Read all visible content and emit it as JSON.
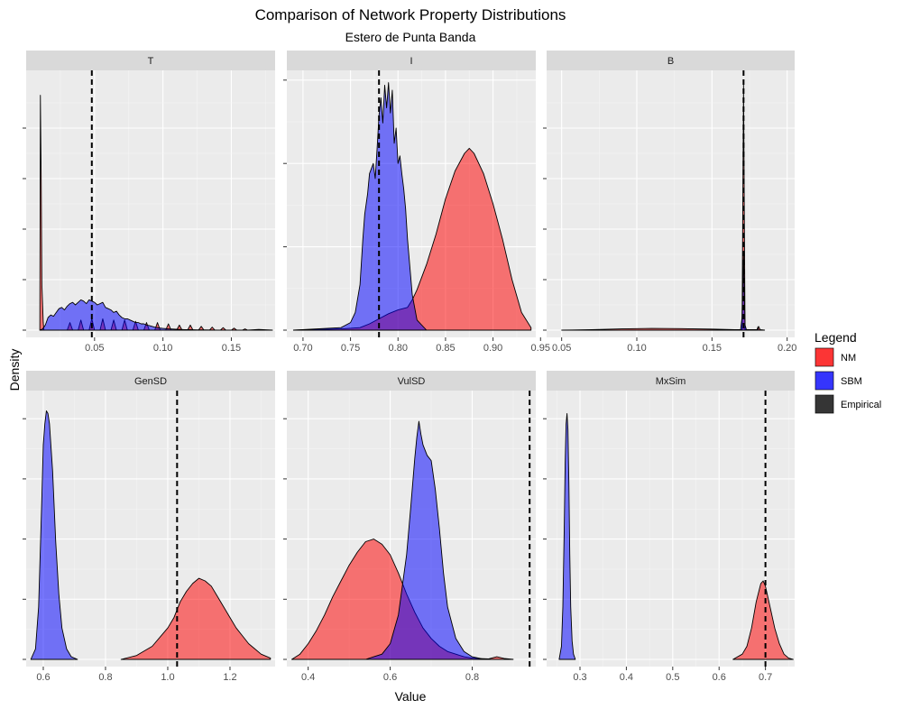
{
  "chart_data": {
    "type": "area",
    "title": "Comparison of Network Property Distributions",
    "subtitle": "Estero de Punta Banda",
    "xlabel": "Value",
    "ylabel": "Density",
    "grid": true,
    "legend": {
      "title": "Legend",
      "placement": "right",
      "entries": [
        {
          "label": "NM",
          "color": "#ff0000"
        },
        {
          "label": "SBM",
          "color": "#0000ff"
        },
        {
          "label": "Empirical",
          "color": "#000000"
        }
      ]
    },
    "panels": [
      {
        "name": "T",
        "xlim": [
          0.0,
          0.182
        ],
        "ylim": [
          0,
          1
        ],
        "xticks": [
          0.05,
          0.1,
          0.15
        ],
        "xtick_labels": [
          "0.05",
          "0.10",
          "0.15"
        ],
        "yticks": [
          0.0,
          0.2,
          0.4,
          0.6,
          0.8
        ],
        "empirical": 0.048,
        "series": [
          {
            "name": "NM",
            "x": [
              0.01,
              0.0104,
              0.011,
              0.0115,
              0.0125,
              0.013,
              0.03,
              0.032,
              0.034,
              0.038,
              0.04,
              0.042,
              0.046,
              0.048,
              0.05,
              0.054,
              0.056,
              0.058,
              0.062,
              0.064,
              0.066,
              0.07,
              0.072,
              0.074,
              0.078,
              0.08,
              0.082,
              0.086,
              0.088,
              0.09,
              0.094,
              0.096,
              0.098,
              0.102,
              0.104,
              0.106,
              0.11,
              0.112,
              0.114,
              0.118,
              0.12,
              0.122,
              0.126,
              0.128,
              0.13,
              0.134,
              0.136,
              0.138,
              0.142,
              0.144,
              0.146,
              0.15,
              0.152,
              0.154,
              0.158,
              0.16,
              0.162,
              0.17,
              0.18
            ],
            "y": [
              0.0,
              0.93,
              0.6,
              0.18,
              0.03,
              0.0,
              0.0,
              0.03,
              0.0,
              0.0,
              0.04,
              0.0,
              0.0,
              0.045,
              0.0,
              0.0,
              0.045,
              0.0,
              0.0,
              0.04,
              0.0,
              0.0,
              0.04,
              0.0,
              0.0,
              0.035,
              0.0,
              0.0,
              0.03,
              0.0,
              0.0,
              0.03,
              0.0,
              0.0,
              0.025,
              0.0,
              0.0,
              0.02,
              0.0,
              0.0,
              0.02,
              0.0,
              0.0,
              0.015,
              0.0,
              0.0,
              0.012,
              0.0,
              0.0,
              0.01,
              0.0,
              0.0,
              0.008,
              0.0,
              0.0,
              0.005,
              0.0,
              0.003,
              0.0
            ]
          },
          {
            "name": "SBM",
            "x": [
              0.01,
              0.012,
              0.014,
              0.016,
              0.018,
              0.02,
              0.022,
              0.024,
              0.026,
              0.028,
              0.03,
              0.032,
              0.034,
              0.036,
              0.038,
              0.04,
              0.042,
              0.044,
              0.046,
              0.048,
              0.05,
              0.052,
              0.054,
              0.056,
              0.058,
              0.06,
              0.062,
              0.064,
              0.066,
              0.068,
              0.07,
              0.072,
              0.074,
              0.076,
              0.078,
              0.08,
              0.082,
              0.084,
              0.086,
              0.088,
              0.09,
              0.092,
              0.094,
              0.096,
              0.098,
              0.1,
              0.104,
              0.108,
              0.112,
              0.116,
              0.12,
              0.125,
              0.13,
              0.14,
              0.15,
              0.16,
              0.18
            ],
            "y": [
              0.0,
              0.005,
              0.02,
              0.05,
              0.06,
              0.055,
              0.07,
              0.085,
              0.09,
              0.08,
              0.095,
              0.105,
              0.11,
              0.1,
              0.11,
              0.12,
              0.115,
              0.105,
              0.12,
              0.115,
              0.11,
              0.1,
              0.105,
              0.11,
              0.09,
              0.085,
              0.08,
              0.07,
              0.075,
              0.06,
              0.05,
              0.045,
              0.045,
              0.04,
              0.035,
              0.03,
              0.03,
              0.025,
              0.025,
              0.02,
              0.018,
              0.015,
              0.012,
              0.01,
              0.008,
              0.007,
              0.005,
              0.004,
              0.003,
              0.002,
              0.002,
              0.001,
              0.001,
              0.0,
              0.0,
              0.0,
              0.0
            ]
          }
        ]
      },
      {
        "name": "I",
        "xlim": [
          0.683,
          0.945
        ],
        "ylim": [
          0,
          1
        ],
        "xticks": [
          0.7,
          0.75,
          0.8,
          0.85,
          0.9,
          0.95
        ],
        "xtick_labels": [
          "0.70",
          "0.75",
          "0.80",
          "0.85",
          "0.90",
          "0.95"
        ],
        "yticks": [
          0.0,
          0.33,
          0.66,
          0.99
        ],
        "empirical": 0.78,
        "series": [
          {
            "name": "NM",
            "x": [
              0.69,
              0.74,
              0.76,
              0.77,
              0.78,
              0.79,
              0.8,
              0.81,
              0.815,
              0.82,
              0.83,
              0.84,
              0.85,
              0.86,
              0.87,
              0.875,
              0.88,
              0.89,
              0.9,
              0.91,
              0.92,
              0.93,
              0.94
            ],
            "y": [
              0.0,
              0.005,
              0.01,
              0.025,
              0.045,
              0.065,
              0.08,
              0.09,
              0.12,
              0.16,
              0.26,
              0.38,
              0.52,
              0.63,
              0.7,
              0.72,
              0.7,
              0.62,
              0.5,
              0.36,
              0.2,
              0.07,
              0.01
            ]
          },
          {
            "name": "SBM",
            "x": [
              0.69,
              0.74,
              0.75,
              0.755,
              0.76,
              0.763,
              0.765,
              0.768,
              0.77,
              0.772,
              0.774,
              0.776,
              0.778,
              0.78,
              0.782,
              0.784,
              0.786,
              0.788,
              0.79,
              0.792,
              0.794,
              0.796,
              0.798,
              0.8,
              0.802,
              0.804,
              0.806,
              0.808,
              0.81,
              0.815,
              0.82,
              0.83
            ],
            "y": [
              0.0,
              0.01,
              0.03,
              0.07,
              0.18,
              0.36,
              0.46,
              0.54,
              0.62,
              0.64,
              0.66,
              0.6,
              0.72,
              0.85,
              0.92,
              0.82,
              0.97,
              0.88,
              0.98,
              0.86,
              0.95,
              0.74,
              0.8,
              0.66,
              0.69,
              0.62,
              0.56,
              0.48,
              0.36,
              0.14,
              0.04,
              0.0
            ]
          }
        ]
      },
      {
        "name": "B",
        "xlim": [
          0.04,
          0.205
        ],
        "ylim": [
          0,
          1
        ],
        "xticks": [
          0.05,
          0.1,
          0.15,
          0.2
        ],
        "xtick_labels": [
          "0.05",
          "0.10",
          "0.15",
          "0.20"
        ],
        "yticks": [
          0.0,
          0.2,
          0.4,
          0.6,
          0.8
        ],
        "empirical": 0.171,
        "series": [
          {
            "name": "NM",
            "x": [
              0.05,
              0.07,
              0.09,
              0.11,
              0.13,
              0.15,
              0.165,
              0.17,
              0.171,
              0.172,
              0.175,
              0.18,
              0.181,
              0.182,
              0.185
            ],
            "y": [
              0.0,
              0.002,
              0.005,
              0.007,
              0.006,
              0.004,
              0.002,
              0.002,
              0.98,
              0.002,
              0.002,
              0.002,
              0.015,
              0.002,
              0.0
            ]
          },
          {
            "name": "SBM",
            "x": [
              0.169,
              0.17,
              0.1705,
              0.171,
              0.1715,
              0.172,
              0.173,
              0.18,
              0.1805,
              0.181,
              0.1815
            ],
            "y": [
              0.0,
              0.05,
              0.18,
              0.3,
              0.14,
              0.02,
              0.0,
              0.0,
              0.012,
              0.0,
              0.0
            ]
          }
        ]
      },
      {
        "name": "GenSD",
        "xlim": [
          0.545,
          1.345
        ],
        "ylim": [
          0,
          1
        ],
        "xticks": [
          0.6,
          0.8,
          1.0,
          1.2
        ],
        "xtick_labels": [
          "0.6",
          "0.8",
          "1.0",
          "1.2"
        ],
        "yticks": [
          0.0,
          0.23,
          0.46,
          0.69,
          0.92
        ],
        "empirical": 1.03,
        "series": [
          {
            "name": "NM",
            "x": [
              0.85,
              0.9,
              0.95,
              1.0,
              1.02,
              1.04,
              1.06,
              1.08,
              1.1,
              1.12,
              1.14,
              1.16,
              1.18,
              1.2,
              1.22,
              1.24,
              1.26,
              1.28,
              1.3,
              1.33
            ],
            "y": [
              0.0,
              0.015,
              0.05,
              0.12,
              0.16,
              0.22,
              0.26,
              0.29,
              0.31,
              0.3,
              0.28,
              0.24,
              0.2,
              0.16,
              0.12,
              0.09,
              0.06,
              0.04,
              0.02,
              0.005
            ]
          },
          {
            "name": "SBM",
            "x": [
              0.56,
              0.575,
              0.585,
              0.595,
              0.6,
              0.605,
              0.61,
              0.615,
              0.62,
              0.63,
              0.64,
              0.65,
              0.66,
              0.675,
              0.69,
              0.71
            ],
            "y": [
              0.0,
              0.04,
              0.2,
              0.6,
              0.82,
              0.9,
              0.95,
              0.94,
              0.9,
              0.72,
              0.45,
              0.25,
              0.12,
              0.04,
              0.01,
              0.0
            ]
          }
        ]
      },
      {
        "name": "VulSD",
        "xlim": [
          0.348,
          0.955
        ],
        "ylim": [
          0,
          1
        ],
        "xticks": [
          0.4,
          0.6,
          0.8
        ],
        "xtick_labels": [
          "0.4",
          "0.6",
          "0.8"
        ],
        "yticks": [
          0.0,
          0.23,
          0.46,
          0.69,
          0.92
        ],
        "empirical": 0.94,
        "series": [
          {
            "name": "NM",
            "x": [
              0.36,
              0.38,
              0.4,
              0.42,
              0.44,
              0.46,
              0.48,
              0.5,
              0.52,
              0.54,
              0.56,
              0.58,
              0.6,
              0.62,
              0.64,
              0.66,
              0.68,
              0.7,
              0.72,
              0.74,
              0.76,
              0.78,
              0.8,
              0.82,
              0.84,
              0.86,
              0.88,
              0.9
            ],
            "y": [
              0.0,
              0.02,
              0.06,
              0.11,
              0.17,
              0.24,
              0.3,
              0.36,
              0.41,
              0.45,
              0.46,
              0.44,
              0.4,
              0.33,
              0.25,
              0.18,
              0.12,
              0.08,
              0.05,
              0.03,
              0.02,
              0.01,
              0.005,
              0.003,
              0.002,
              0.01,
              0.003,
              0.0
            ]
          },
          {
            "name": "SBM",
            "x": [
              0.54,
              0.56,
              0.58,
              0.6,
              0.62,
              0.64,
              0.65,
              0.66,
              0.665,
              0.67,
              0.675,
              0.68,
              0.69,
              0.7,
              0.71,
              0.72,
              0.73,
              0.74,
              0.76,
              0.78,
              0.8,
              0.83
            ],
            "y": [
              0.0,
              0.01,
              0.02,
              0.06,
              0.17,
              0.4,
              0.58,
              0.77,
              0.85,
              0.91,
              0.86,
              0.82,
              0.78,
              0.76,
              0.65,
              0.5,
              0.33,
              0.2,
              0.08,
              0.03,
              0.01,
              0.0
            ]
          }
        ]
      },
      {
        "name": "MxSim",
        "xlim": [
          0.228,
          0.763
        ],
        "ylim": [
          0,
          1
        ],
        "xticks": [
          0.3,
          0.4,
          0.5,
          0.6,
          0.7
        ],
        "xtick_labels": [
          "0.3",
          "0.4",
          "0.5",
          "0.6",
          "0.7"
        ],
        "yticks": [
          0.0,
          0.23,
          0.46,
          0.69,
          0.92
        ],
        "empirical": 0.7,
        "series": [
          {
            "name": "NM",
            "x": [
              0.63,
              0.65,
              0.66,
              0.67,
              0.68,
              0.69,
              0.695,
              0.7,
              0.71,
              0.72,
              0.73,
              0.74,
              0.75,
              0.76
            ],
            "y": [
              0.0,
              0.02,
              0.05,
              0.12,
              0.22,
              0.29,
              0.3,
              0.28,
              0.2,
              0.12,
              0.06,
              0.02,
              0.005,
              0.0
            ]
          },
          {
            "name": "SBM",
            "x": [
              0.255,
              0.26,
              0.263,
              0.266,
              0.268,
              0.27,
              0.272,
              0.274,
              0.276,
              0.278,
              0.28,
              0.283,
              0.286,
              0.29
            ],
            "y": [
              0.0,
              0.05,
              0.2,
              0.5,
              0.75,
              0.9,
              0.94,
              0.88,
              0.68,
              0.4,
              0.2,
              0.07,
              0.02,
              0.0
            ]
          }
        ]
      }
    ]
  }
}
